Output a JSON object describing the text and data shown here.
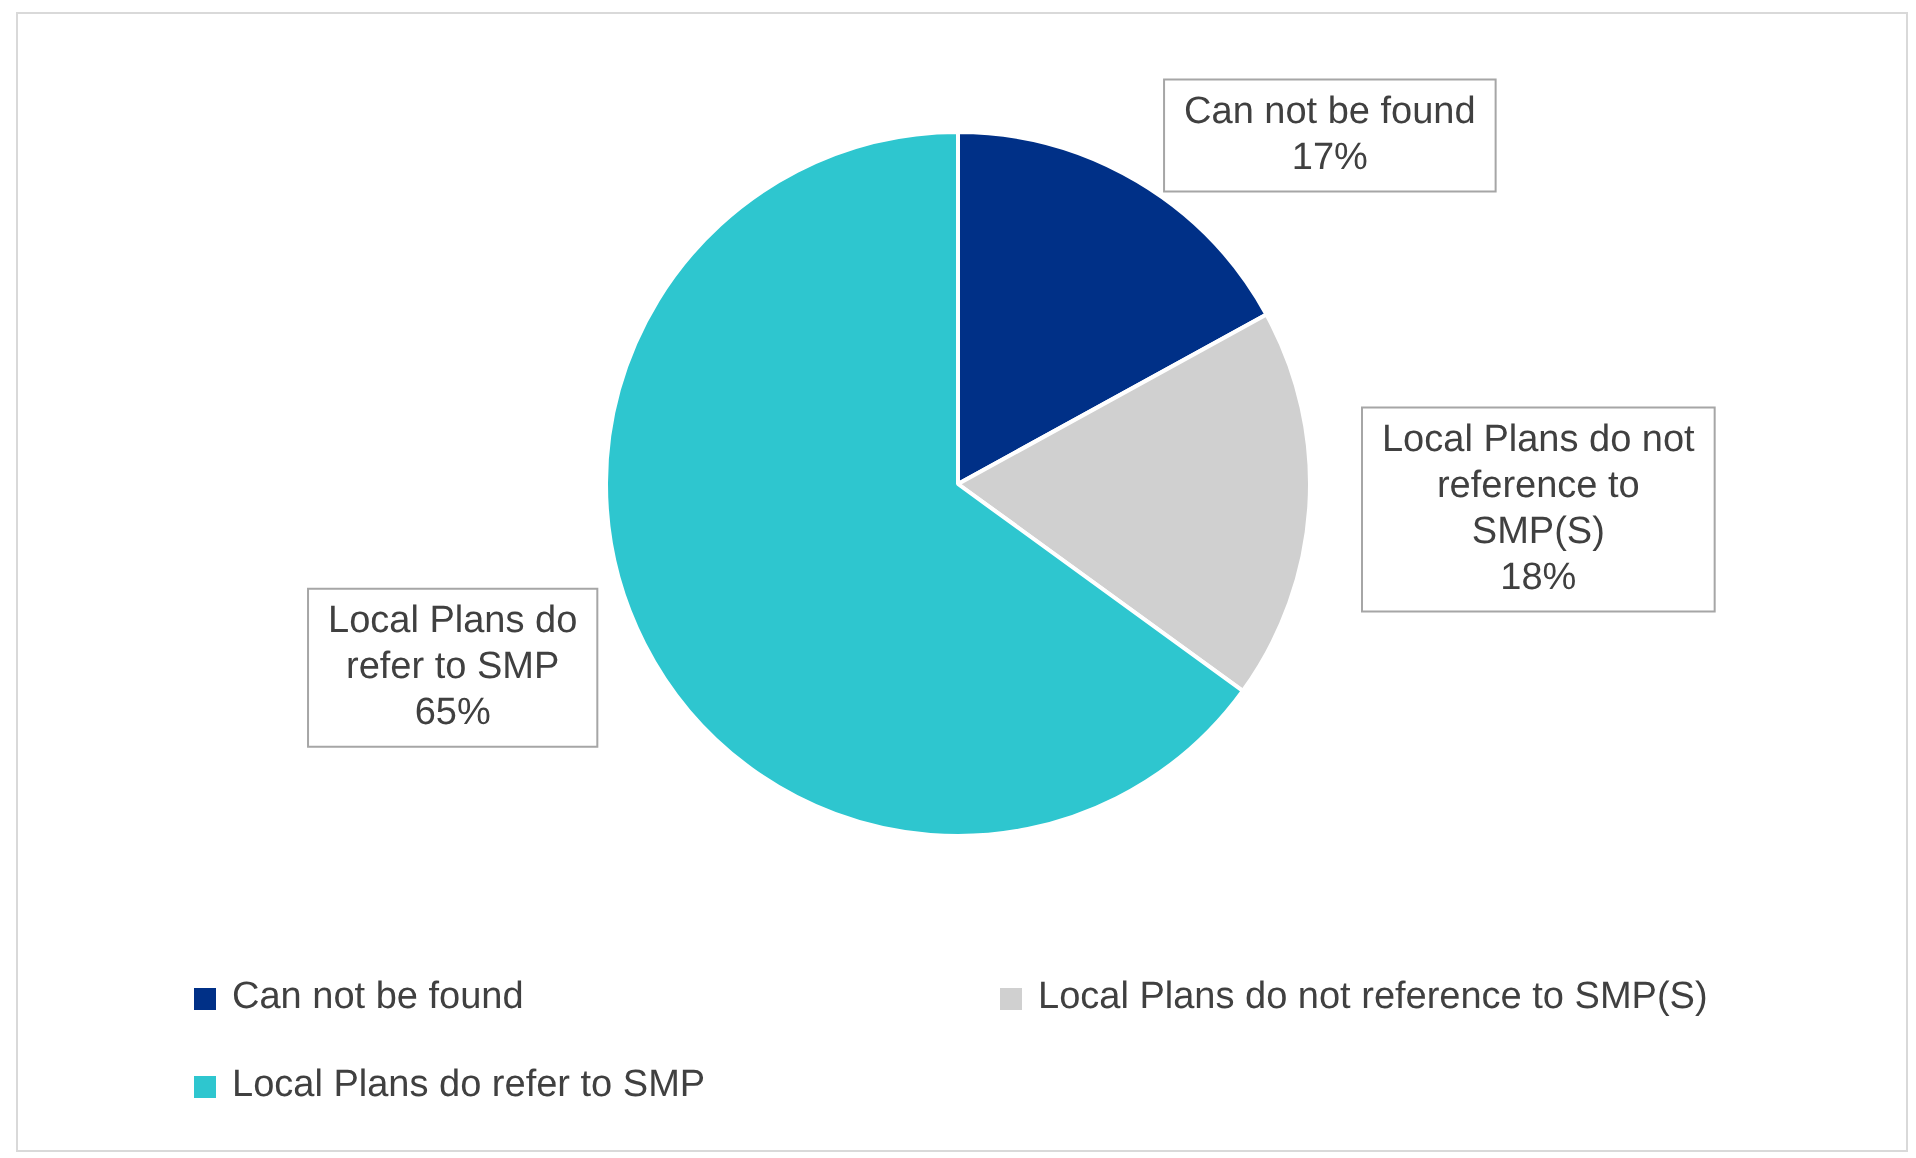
{
  "chart_data": {
    "type": "pie",
    "categories": [
      "Can not be found",
      "Local Plans do not reference to SMP(S)",
      "Local Plans do refer to SMP"
    ],
    "values": [
      17,
      18,
      65
    ],
    "colors": [
      "#003087",
      "#d0d0d0",
      "#2ec6cf"
    ],
    "value_labels": [
      "17%",
      "18%",
      "65%"
    ],
    "legend": "bottom"
  }
}
